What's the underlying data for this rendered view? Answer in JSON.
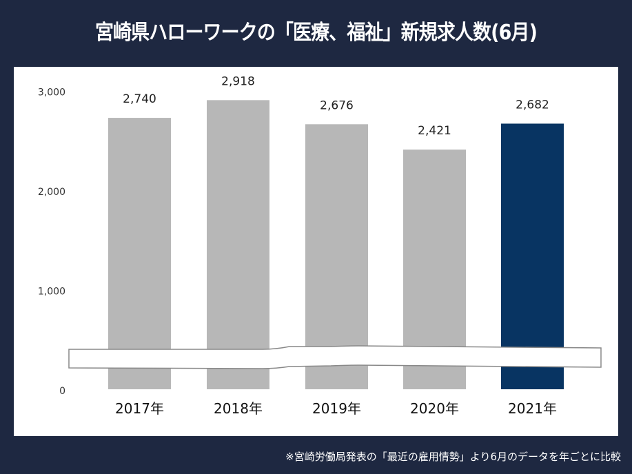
{
  "title": "宮崎県ハローワークの「医療、福祉」新規求人数(6月)",
  "footnote": "※宮崎労働局発表の「最近の雇用情勢」より6月のデータを年ごとに比較",
  "colors": {
    "background": "#1e2841",
    "bar": "#b7b7b7",
    "highlight_bar": "#083462"
  },
  "chart_data": {
    "type": "bar",
    "title": "宮崎県ハローワークの「医療、福祉」新規求人数(6月)",
    "categories": [
      "2017年",
      "2018年",
      "2019年",
      "2020年",
      "2021年"
    ],
    "values": [
      2740,
      2918,
      2676,
      2421,
      2682
    ],
    "value_labels": [
      "2,740",
      "2,918",
      "2,676",
      "2,421",
      "2,682"
    ],
    "highlight_index": 4,
    "ylim": [
      0,
      3000
    ],
    "yticks": [
      0,
      1000,
      2000,
      3000
    ],
    "ytick_labels": [
      "0",
      "1,000",
      "2,000",
      "3,000"
    ],
    "axis_break": true,
    "grid": false,
    "legend": "none"
  }
}
